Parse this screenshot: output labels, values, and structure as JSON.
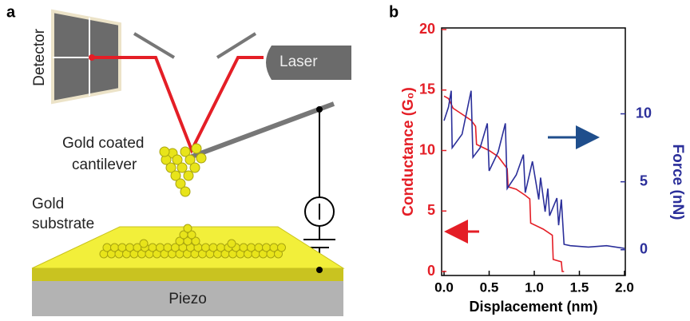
{
  "diagram": {
    "panel_label": "a",
    "detector": "Detector",
    "laser": "Laser",
    "cantilever_line1": "Gold coated",
    "cantilever_line2": "cantilever",
    "substrate_line1": "Gold",
    "substrate_line2": "substrate",
    "piezo": "Piezo"
  },
  "chart_data": {
    "type": "line",
    "panel_label": "b",
    "xlabel": "Displacement (nm)",
    "ylabel": "Conductance (G₀)",
    "y2label": "Force (nN)",
    "xlim": [
      0,
      2
    ],
    "xticks": [
      {
        "value": 0,
        "label": "0.0"
      },
      0.5,
      {
        "value": 1,
        "label": "1.0"
      },
      1.5,
      {
        "value": 2,
        "label": "2.0"
      }
    ],
    "ylim": [
      0,
      20
    ],
    "yticks": [
      0,
      5,
      10,
      15,
      20
    ],
    "y2lim": [
      -1.6,
      16.2
    ],
    "y2ticks": [
      0,
      5,
      10
    ],
    "series": [
      {
        "color": "#e41e26",
        "x": [
          0,
          0.05,
          0.1,
          0.2,
          0.3,
          0.35,
          0.36,
          0.5,
          0.6,
          0.7,
          0.71,
          0.8,
          0.9,
          0.95,
          0.96,
          1.1,
          1.2,
          1.21,
          1.3,
          1.31,
          1.33
        ],
        "values": [
          14.5,
          14.3,
          13.5,
          13,
          12.5,
          12,
          10.5,
          10,
          9.5,
          8.5,
          7,
          6.8,
          6.3,
          6,
          4,
          3.5,
          3,
          1,
          0.8,
          0,
          0
        ]
      },
      {
        "color": "#2b2f9a",
        "axis": "y2",
        "x": [
          0,
          0.05,
          0.08,
          0.09,
          0.2,
          0.3,
          0.32,
          0.4,
          0.48,
          0.5,
          0.6,
          0.68,
          0.7,
          0.8,
          0.88,
          0.9,
          0.98,
          1.05,
          1.07,
          1.12,
          1.15,
          1.17,
          1.25,
          1.27,
          1.3,
          1.33,
          1.4,
          1.6,
          1.8,
          2.0
        ],
        "values": [
          9.5,
          10.5,
          11.7,
          7.5,
          8.5,
          11.7,
          6.8,
          7.5,
          9.3,
          5.8,
          7.2,
          9.3,
          4.5,
          5.5,
          7.0,
          4.2,
          6.5,
          3.7,
          5.3,
          2.8,
          4.5,
          2.5,
          3.8,
          1.8,
          3.7,
          0.4,
          0.3,
          0.2,
          0.3,
          0.1
        ]
      }
    ]
  }
}
